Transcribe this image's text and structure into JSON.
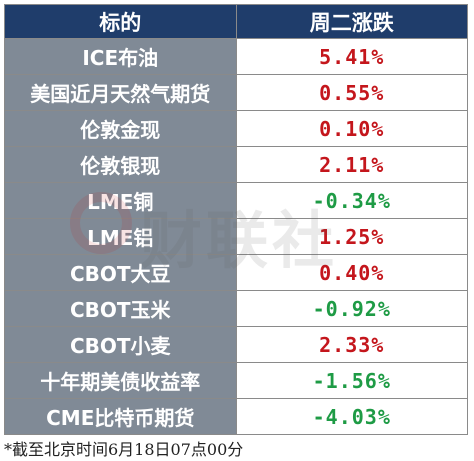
{
  "header": {
    "col_name": "标的",
    "col_change": "周二涨跌"
  },
  "rows": [
    {
      "name": "ICE布油",
      "change": "5.41%",
      "dir": "up"
    },
    {
      "name": "美国近月天然气期货",
      "change": "0.55%",
      "dir": "up"
    },
    {
      "name": "伦敦金现",
      "change": "0.10%",
      "dir": "up"
    },
    {
      "name": "伦敦银现",
      "change": "2.11%",
      "dir": "up"
    },
    {
      "name": "LME铜",
      "change": "-0.34%",
      "dir": "down"
    },
    {
      "name": "LME铝",
      "change": "1.25%",
      "dir": "up"
    },
    {
      "name": "CBOT大豆",
      "change": "0.40%",
      "dir": "up"
    },
    {
      "name": "CBOT玉米",
      "change": "-0.92%",
      "dir": "down"
    },
    {
      "name": "CBOT小麦",
      "change": "2.33%",
      "dir": "up"
    },
    {
      "name": "十年期美债收益率",
      "change": "-1.56%",
      "dir": "down"
    },
    {
      "name": "CME比特币期货",
      "change": "-4.03%",
      "dir": "down"
    }
  ],
  "watermark": {
    "text": "财联社"
  },
  "footnote": "*截至北京时间6月18日07点00分",
  "colors": {
    "header_bg": "#1f3d6b",
    "name_bg": "#808a96",
    "up": "#c4161c",
    "down": "#1e9b45"
  }
}
